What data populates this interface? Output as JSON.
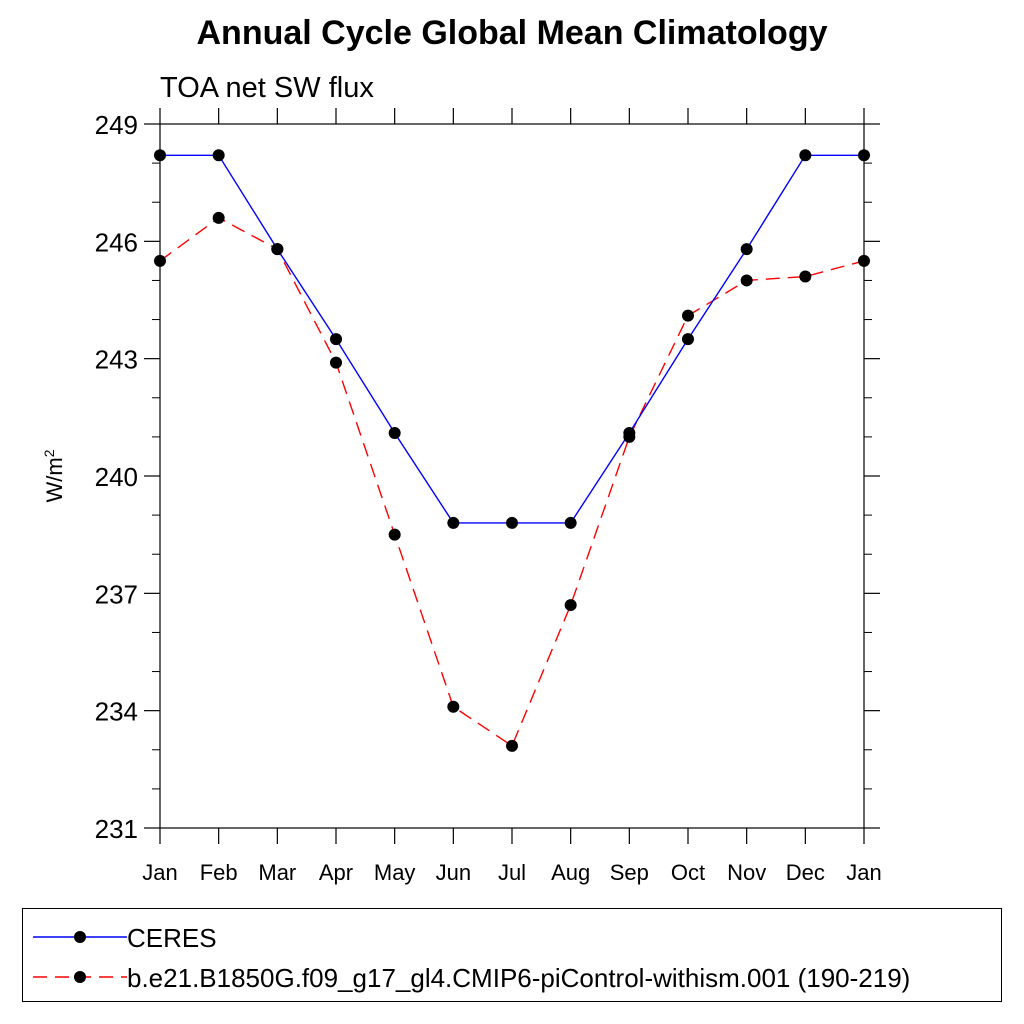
{
  "chart_data": {
    "type": "line",
    "title": "Annual Cycle Global Mean Climatology",
    "subtitle": "TOA net SW flux",
    "ylabel_base": "W/m",
    "ylabel_sup": "2",
    "ylim": [
      231,
      249
    ],
    "yticks": [
      "231",
      "234",
      "237",
      "240",
      "243",
      "246",
      "249"
    ],
    "categories": [
      "Jan",
      "Feb",
      "Mar",
      "Apr",
      "May",
      "Jun",
      "Jul",
      "Aug",
      "Sep",
      "Oct",
      "Nov",
      "Dec",
      "Jan"
    ],
    "grid": false,
    "legend_placement": "bottom",
    "series": [
      {
        "name": "CERES",
        "color": "#0000ff",
        "dash": "solid",
        "values": [
          248.2,
          248.2,
          245.8,
          243.5,
          241.1,
          238.8,
          238.8,
          238.8,
          241.1,
          243.5,
          245.8,
          248.2,
          248.2
        ]
      },
      {
        "name": "b.e21.B1850G.f09_g17_gl4.CMIP6-piControl-withism.001 (190-219)",
        "color": "#ff0000",
        "dash": "dashed",
        "values": [
          245.5,
          246.6,
          245.8,
          242.9,
          238.5,
          234.1,
          233.1,
          236.7,
          241.0,
          244.1,
          245.0,
          245.1,
          245.5
        ]
      }
    ]
  }
}
